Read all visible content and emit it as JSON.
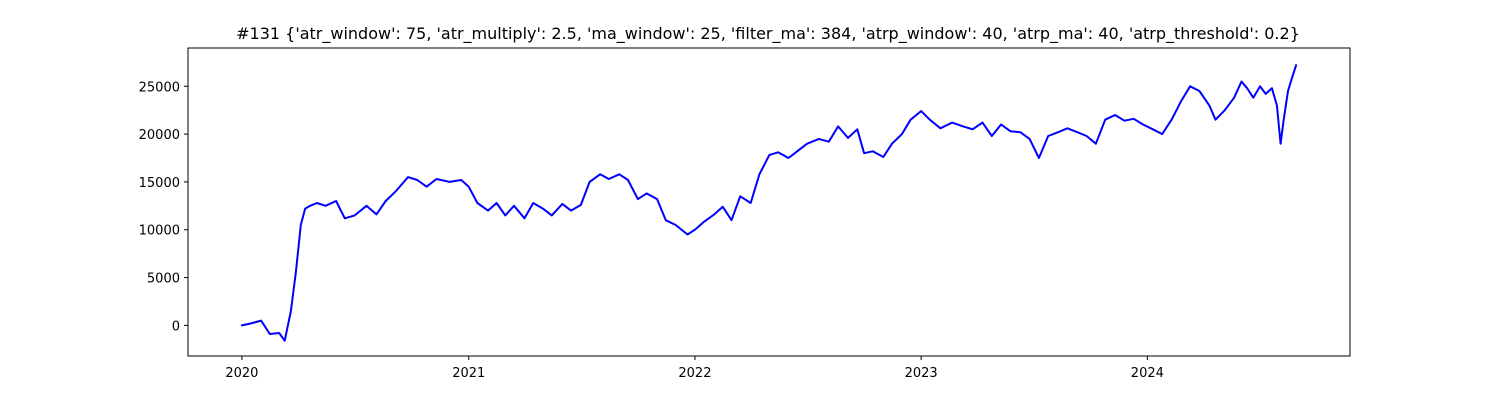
{
  "chart_data": {
    "type": "line",
    "title": "#131 {'atr_window': 75, 'atr_multiply': 2.5, 'ma_window': 25, 'filter_ma': 384, 'atrp_window': 40, 'atrp_ma': 40, 'atrp_threshold': 0.2}",
    "xlabel": "",
    "ylabel": "",
    "x_is_date": true,
    "xlim": [
      "2019-10-06",
      "2024-11-23"
    ],
    "ylim": [
      -3200,
      29000
    ],
    "x_ticks": [
      {
        "label": "2020",
        "value": "2020-01-01"
      },
      {
        "label": "2021",
        "value": "2021-01-01"
      },
      {
        "label": "2022",
        "value": "2022-01-01"
      },
      {
        "label": "2023",
        "value": "2023-01-01"
      },
      {
        "label": "2024",
        "value": "2024-01-01"
      }
    ],
    "y_ticks": [
      0,
      5000,
      10000,
      15000,
      20000,
      25000
    ],
    "y_tick_labels": [
      "0",
      "5000",
      "10000",
      "15000",
      "20000",
      "25000"
    ],
    "grid": false,
    "series": [
      {
        "color": "#0000ff",
        "points": [
          [
            "2020-01-01",
            0
          ],
          [
            "2020-01-15",
            200
          ],
          [
            "2020-02-01",
            500
          ],
          [
            "2020-02-15",
            -900
          ],
          [
            "2020-03-01",
            -800
          ],
          [
            "2020-03-10",
            -1600
          ],
          [
            "2020-03-20",
            1500
          ],
          [
            "2020-03-28",
            5500
          ],
          [
            "2020-04-05",
            10500
          ],
          [
            "2020-04-12",
            12200
          ],
          [
            "2020-04-20",
            12500
          ],
          [
            "2020-05-01",
            12800
          ],
          [
            "2020-05-15",
            12500
          ],
          [
            "2020-06-01",
            13000
          ],
          [
            "2020-06-15",
            11200
          ],
          [
            "2020-07-01",
            11500
          ],
          [
            "2020-07-20",
            12500
          ],
          [
            "2020-08-05",
            11600
          ],
          [
            "2020-08-20",
            13000
          ],
          [
            "2020-09-05",
            14000
          ],
          [
            "2020-09-25",
            15500
          ],
          [
            "2020-10-10",
            15200
          ],
          [
            "2020-10-25",
            14500
          ],
          [
            "2020-11-10",
            15300
          ],
          [
            "2020-12-01",
            15000
          ],
          [
            "2020-12-20",
            15200
          ],
          [
            "2021-01-01",
            14500
          ],
          [
            "2021-01-15",
            12800
          ],
          [
            "2021-02-01",
            12000
          ],
          [
            "2021-02-15",
            12800
          ],
          [
            "2021-03-01",
            11500
          ],
          [
            "2021-03-15",
            12500
          ],
          [
            "2021-04-01",
            11200
          ],
          [
            "2021-04-15",
            12800
          ],
          [
            "2021-05-01",
            12200
          ],
          [
            "2021-05-15",
            11500
          ],
          [
            "2021-06-01",
            12700
          ],
          [
            "2021-06-15",
            12000
          ],
          [
            "2021-07-01",
            12600
          ],
          [
            "2021-07-15",
            15000
          ],
          [
            "2021-08-01",
            15800
          ],
          [
            "2021-08-15",
            15300
          ],
          [
            "2021-09-01",
            15800
          ],
          [
            "2021-09-15",
            15200
          ],
          [
            "2021-10-01",
            13200
          ],
          [
            "2021-10-15",
            13800
          ],
          [
            "2021-11-01",
            13200
          ],
          [
            "2021-11-15",
            11000
          ],
          [
            "2021-12-01",
            10500
          ],
          [
            "2021-12-20",
            9500
          ],
          [
            "2022-01-01",
            10000
          ],
          [
            "2022-01-15",
            10800
          ],
          [
            "2022-02-01",
            11600
          ],
          [
            "2022-02-15",
            12400
          ],
          [
            "2022-03-01",
            11000
          ],
          [
            "2022-03-15",
            13500
          ],
          [
            "2022-04-01",
            12800
          ],
          [
            "2022-04-15",
            15800
          ],
          [
            "2022-05-01",
            17800
          ],
          [
            "2022-05-15",
            18100
          ],
          [
            "2022-06-01",
            17500
          ],
          [
            "2022-06-15",
            18200
          ],
          [
            "2022-07-01",
            19000
          ],
          [
            "2022-07-20",
            19500
          ],
          [
            "2022-08-05",
            19200
          ],
          [
            "2022-08-20",
            20800
          ],
          [
            "2022-09-05",
            19600
          ],
          [
            "2022-09-20",
            20500
          ],
          [
            "2022-10-01",
            18000
          ],
          [
            "2022-10-15",
            18200
          ],
          [
            "2022-11-01",
            17600
          ],
          [
            "2022-11-15",
            19000
          ],
          [
            "2022-12-01",
            20000
          ],
          [
            "2022-12-15",
            21500
          ],
          [
            "2023-01-01",
            22400
          ],
          [
            "2023-01-15",
            21500
          ],
          [
            "2023-02-01",
            20600
          ],
          [
            "2023-02-20",
            21200
          ],
          [
            "2023-03-10",
            20800
          ],
          [
            "2023-03-25",
            20500
          ],
          [
            "2023-04-10",
            21200
          ],
          [
            "2023-04-25",
            19800
          ],
          [
            "2023-05-10",
            21000
          ],
          [
            "2023-05-25",
            20300
          ],
          [
            "2023-06-10",
            20200
          ],
          [
            "2023-06-25",
            19500
          ],
          [
            "2023-07-10",
            17500
          ],
          [
            "2023-07-25",
            19800
          ],
          [
            "2023-08-10",
            20200
          ],
          [
            "2023-08-25",
            20600
          ],
          [
            "2023-09-10",
            20200
          ],
          [
            "2023-09-25",
            19800
          ],
          [
            "2023-10-10",
            19000
          ],
          [
            "2023-10-25",
            21500
          ],
          [
            "2023-11-10",
            22000
          ],
          [
            "2023-11-25",
            21400
          ],
          [
            "2023-12-10",
            21600
          ],
          [
            "2023-12-25",
            21000
          ],
          [
            "2024-01-10",
            20500
          ],
          [
            "2024-01-25",
            20000
          ],
          [
            "2024-02-10",
            21600
          ],
          [
            "2024-02-25",
            23500
          ],
          [
            "2024-03-10",
            25000
          ],
          [
            "2024-03-25",
            24500
          ],
          [
            "2024-04-10",
            23000
          ],
          [
            "2024-04-20",
            21500
          ],
          [
            "2024-05-05",
            22500
          ],
          [
            "2024-05-20",
            23800
          ],
          [
            "2024-06-01",
            25500
          ],
          [
            "2024-06-10",
            24800
          ],
          [
            "2024-06-20",
            23800
          ],
          [
            "2024-07-01",
            25000
          ],
          [
            "2024-07-10",
            24200
          ],
          [
            "2024-07-20",
            24800
          ],
          [
            "2024-07-28",
            23000
          ],
          [
            "2024-08-03",
            19000
          ],
          [
            "2024-08-08",
            21500
          ],
          [
            "2024-08-15",
            24500
          ],
          [
            "2024-08-22",
            26000
          ],
          [
            "2024-08-28",
            27200
          ]
        ]
      }
    ]
  }
}
